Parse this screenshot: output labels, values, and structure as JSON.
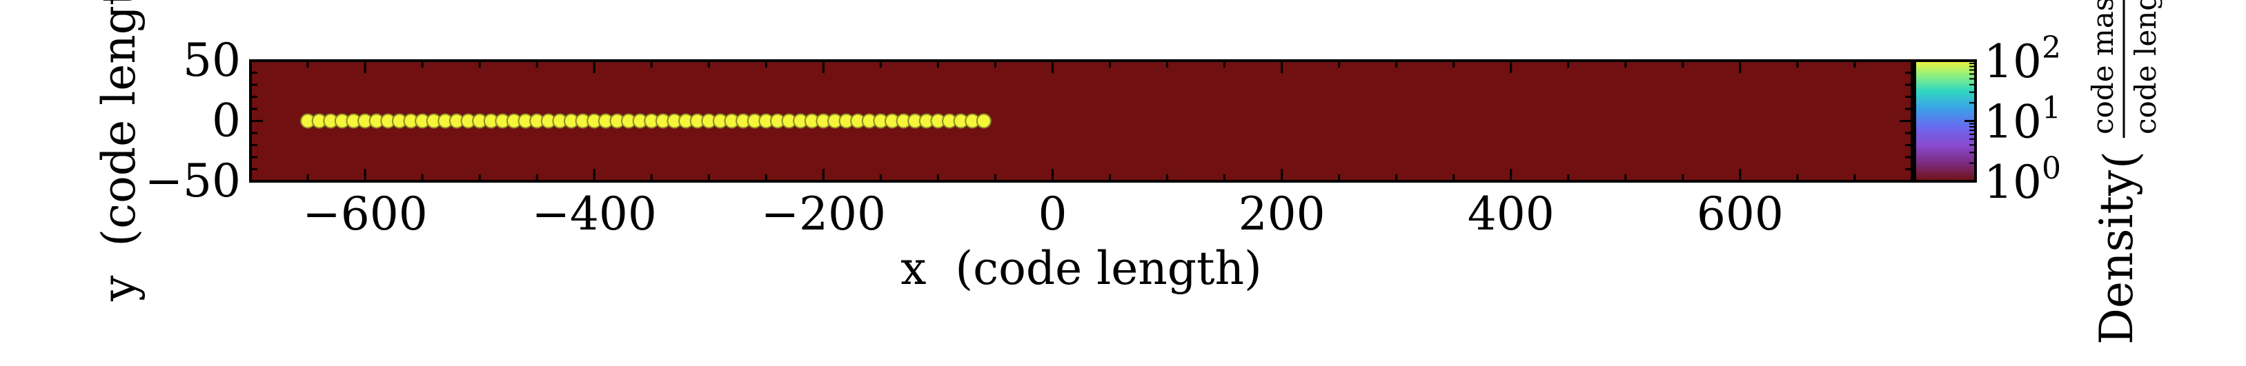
{
  "chart_data": {
    "type": "scatter",
    "title": "",
    "xlabel": "x  (code length)",
    "ylabel": "y  (code length)",
    "xlim": [
      -700,
      750
    ],
    "ylim": [
      -50,
      50
    ],
    "xticks": [
      -600,
      -400,
      -200,
      0,
      200,
      400,
      600
    ],
    "yticks": [
      50,
      0,
      -50
    ],
    "xtick_labels": [
      "−600",
      "−400",
      "−200",
      "0",
      "200",
      "400",
      "600"
    ],
    "ytick_labels": [
      "50",
      "0",
      "−50"
    ],
    "points": {
      "x_start": -650,
      "x_end": -55,
      "x_step": 10,
      "y": 0,
      "color": "#f5f53a",
      "edge_color": "#8a8a2a"
    },
    "background_color": "#701010",
    "colorbar": {
      "label_prefix": "Density",
      "unit_numerator": "code mass",
      "unit_denominator": "code length",
      "scale": "log",
      "ticks": [
        {
          "base": "10",
          "exp": "2"
        },
        {
          "base": "10",
          "exp": "1"
        },
        {
          "base": "10",
          "exp": "0"
        }
      ],
      "colors": [
        "#701010",
        "#7a2a7a",
        "#8a4ad0",
        "#6a6af0",
        "#3aa0e8",
        "#30d8c0",
        "#90f080",
        "#f5f53a"
      ]
    }
  }
}
